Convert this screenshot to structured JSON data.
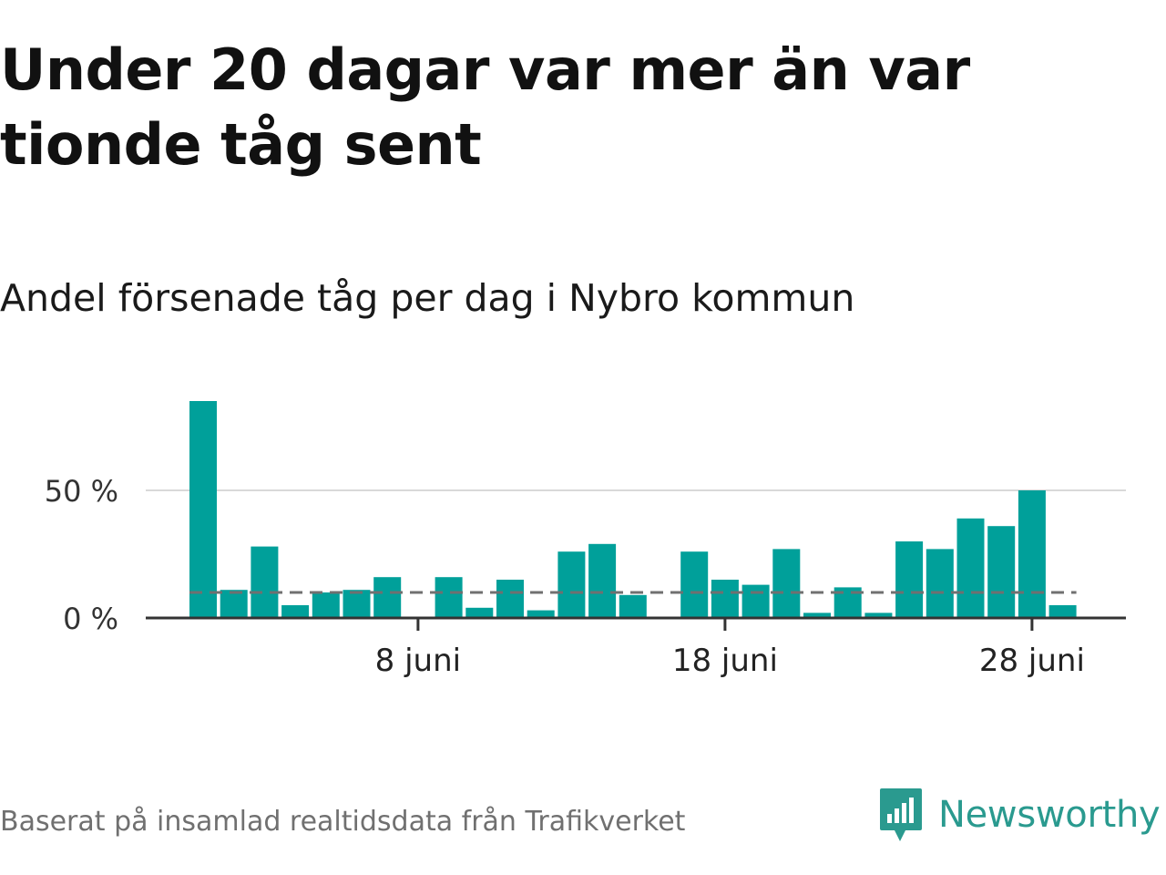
{
  "headline": "Under 20 dagar var mer än var tionde tåg sent",
  "footer": {
    "source": "Baserat på insamlad realtidsdata från Trafikverket",
    "brand": "Newsworthy"
  },
  "colors": {
    "bar": "#00a09a",
    "average_line": "#707070",
    "grid": "#d9d9d9",
    "axis": "#333333",
    "brand": "#2a9a8f"
  },
  "icons": {
    "brand_logo": "newsworthy-chart-bubble-icon"
  },
  "chart_data": {
    "type": "bar",
    "title": "Andel försenade tåg per dag i Nybro kommun",
    "xlabel": "",
    "ylabel": "",
    "x_unit": "day of June",
    "x": [
      1,
      2,
      3,
      4,
      5,
      6,
      7,
      8,
      9,
      10,
      11,
      12,
      13,
      14,
      15,
      16,
      17,
      18,
      19,
      20,
      21,
      22,
      23,
      24,
      25,
      26,
      27,
      28,
      29
    ],
    "values": [
      85,
      11,
      28,
      5,
      10,
      11,
      16,
      0,
      16,
      4,
      15,
      3,
      26,
      29,
      9,
      0,
      26,
      15,
      13,
      27,
      2,
      12,
      2,
      30,
      27,
      39,
      36,
      50,
      5
    ],
    "x_ticks": [
      {
        "x": 8,
        "label": "8 juni"
      },
      {
        "x": 18,
        "label": "18 juni"
      },
      {
        "x": 28,
        "label": "28 juni"
      }
    ],
    "y_ticks": [
      {
        "y": 0,
        "label": "0 %"
      },
      {
        "y": 50,
        "label": "50 %"
      }
    ],
    "average": 10,
    "ylim": [
      0,
      90
    ],
    "grid": true,
    "legend": "none"
  }
}
